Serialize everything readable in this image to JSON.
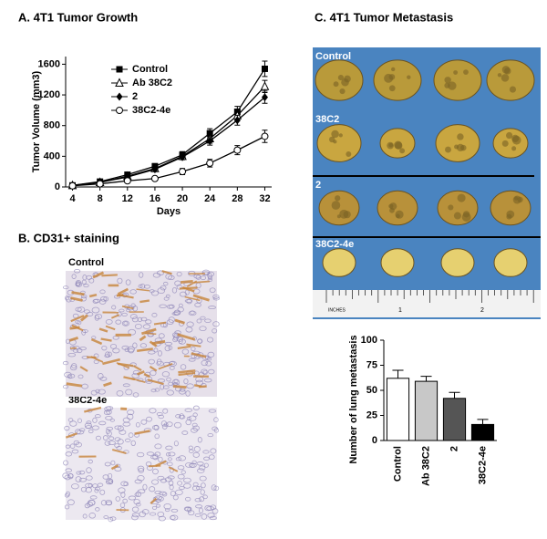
{
  "chart_data": [
    {
      "type": "line",
      "title": "A. 4T1 Tumor Growth",
      "xlabel": "Days",
      "ylabel": "Tumor Volume (mm3)",
      "x": [
        4,
        8,
        12,
        16,
        20,
        24,
        28,
        32
      ],
      "xlim": [
        3,
        33
      ],
      "xticks": [
        4,
        8,
        12,
        16,
        20,
        24,
        28,
        32
      ],
      "ylim": [
        0,
        1700
      ],
      "yticks": [
        0,
        400,
        800,
        1200,
        1600
      ],
      "series": [
        {
          "name": "Control",
          "color": "#000000",
          "marker": "square",
          "values": [
            20,
            70,
            160,
            270,
            420,
            700,
            980,
            1540
          ],
          "errors": [
            10,
            15,
            25,
            35,
            40,
            60,
            70,
            100
          ]
        },
        {
          "name": "Ab 38C2",
          "color": "#000000",
          "marker": "triangle",
          "values": [
            20,
            60,
            140,
            240,
            400,
            630,
            930,
            1310
          ],
          "errors": [
            10,
            15,
            20,
            30,
            40,
            60,
            70,
            80
          ]
        },
        {
          "name": "2",
          "color": "#000000",
          "marker": "diamond",
          "values": [
            20,
            60,
            130,
            230,
            390,
            600,
            870,
            1170
          ],
          "errors": [
            10,
            15,
            20,
            30,
            35,
            55,
            65,
            80
          ]
        },
        {
          "name": "38C2-4e",
          "color": "#000000",
          "marker": "circle",
          "values": [
            15,
            40,
            80,
            110,
            200,
            310,
            480,
            660
          ],
          "errors": [
            10,
            10,
            15,
            20,
            40,
            50,
            60,
            80
          ]
        }
      ]
    },
    {
      "type": "bar",
      "ylabel": "Number of lung metastasis",
      "categories": [
        "Control",
        "Ab 38C2",
        "2",
        "38C2-4e"
      ],
      "values": [
        62,
        59,
        42,
        16
      ],
      "errors": [
        8,
        5,
        6,
        5
      ],
      "colors": [
        "#ffffff",
        "#c8c8c8",
        "#555555",
        "#000000"
      ],
      "ylim": [
        0,
        100
      ],
      "yticks": [
        0,
        25,
        50,
        75,
        100
      ]
    }
  ],
  "panel_b": {
    "title": "B. CD31+ staining",
    "labels": [
      "Control",
      "38C2-4e"
    ]
  },
  "panel_c": {
    "title": "C. 4T1 Tumor Metastasis",
    "labels": [
      "Control",
      "38C2",
      "2",
      "38C2-4e"
    ],
    "ruler": [
      "INCHES",
      "1",
      "2"
    ]
  }
}
